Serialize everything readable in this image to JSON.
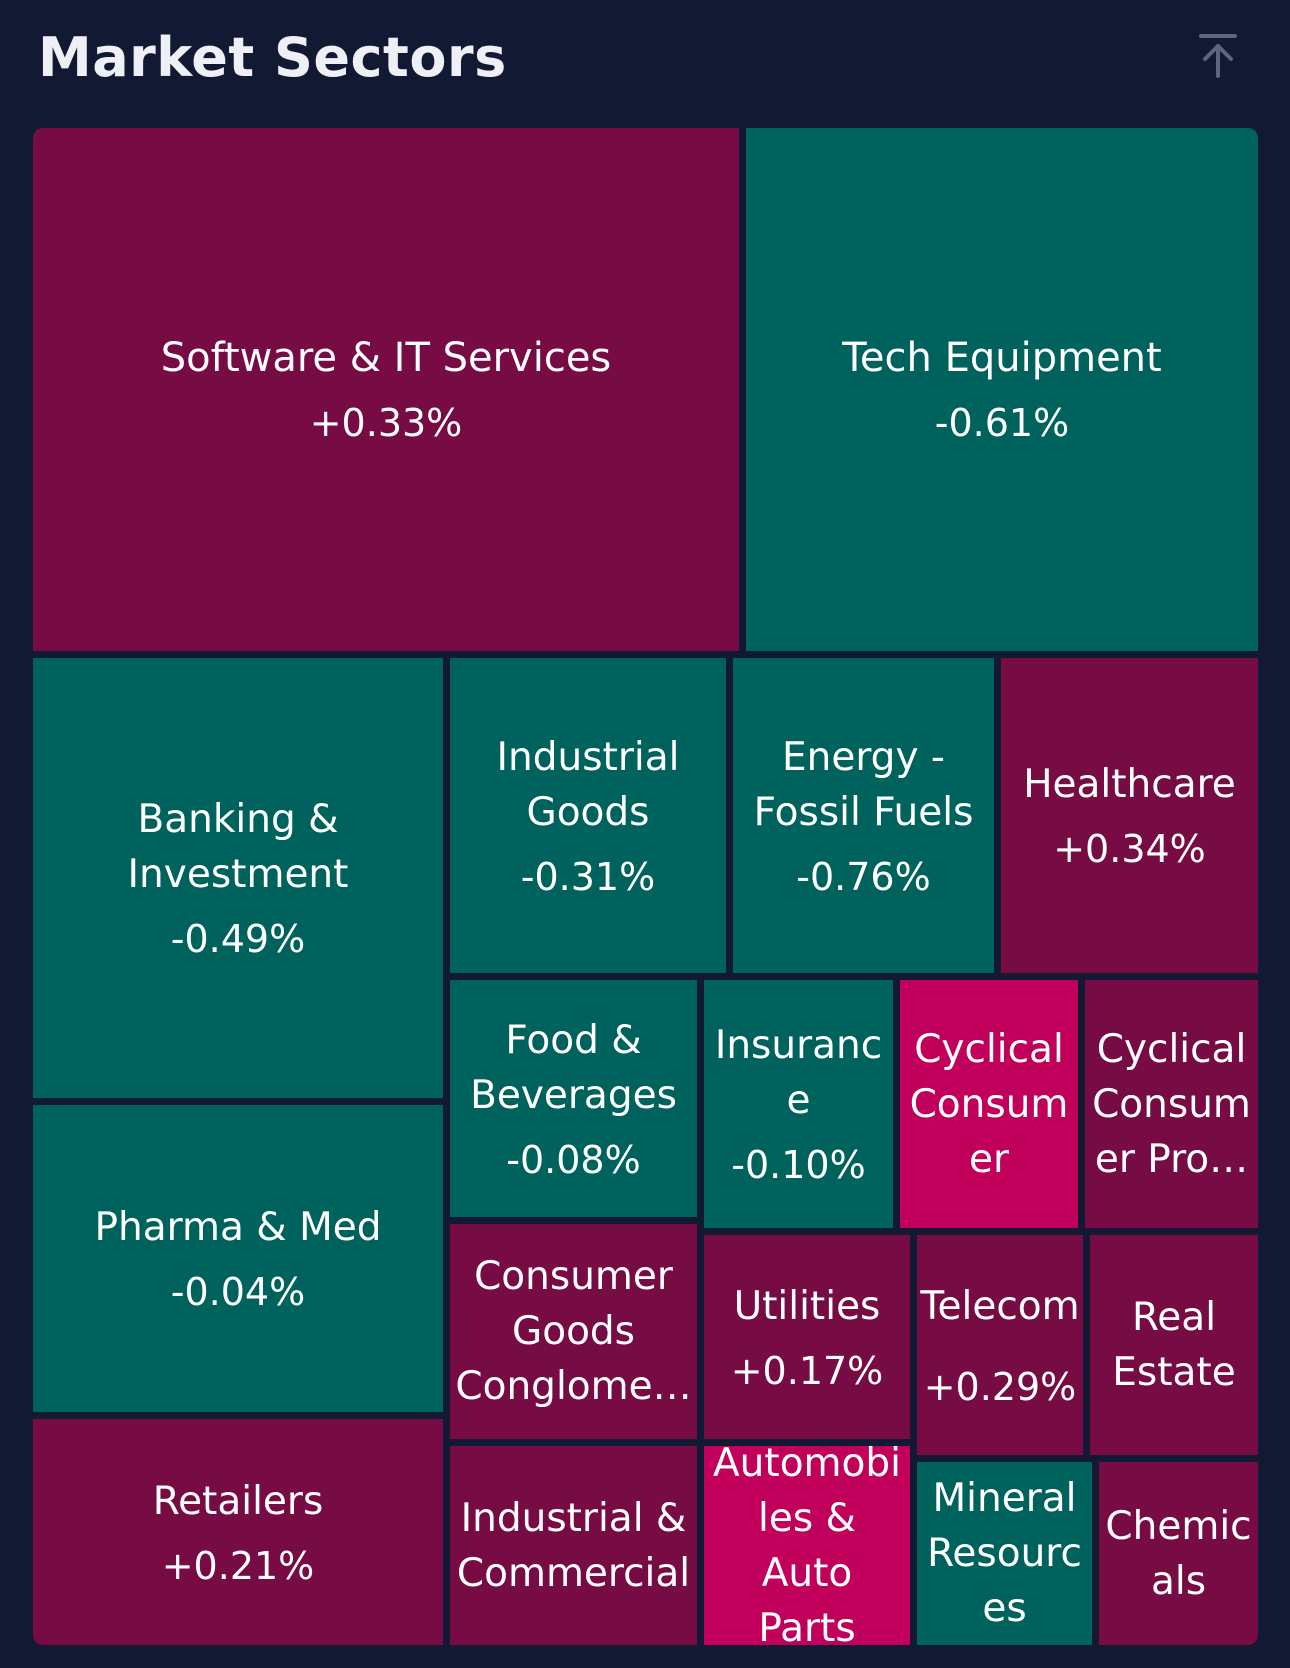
{
  "header": {
    "title": "Market Sectors",
    "collapse_icon": "arrow-up-to-line-icon"
  },
  "colors": {
    "background": "#121a33",
    "negative": "#00625c",
    "positive": "#770b44",
    "positive_strong": "#c0005a"
  },
  "sectors": [
    {
      "name": "Software & IT Services",
      "change": "+0.33%"
    },
    {
      "name": "Tech Equipment",
      "change": "-0.61%"
    },
    {
      "name": "Banking & Investment",
      "change": "-0.49%"
    },
    {
      "name": "Industrial Goods",
      "change": "-0.31%"
    },
    {
      "name": "Energy - Fossil Fuels",
      "change": "-0.76%"
    },
    {
      "name": "Healthcare",
      "change": "+0.34%"
    },
    {
      "name": "Food & Beverages",
      "change": "-0.08%"
    },
    {
      "name": "Insurance",
      "change": "-0.10%"
    },
    {
      "name": "Cyclical Consumer",
      "change": ""
    },
    {
      "name": "Cyclical Consumer Pro…",
      "change": ""
    },
    {
      "name": "Pharma & Med",
      "change": "-0.04%"
    },
    {
      "name": "Consumer Goods Conglome…",
      "change": ""
    },
    {
      "name": "Utilities",
      "change": "+0.17%"
    },
    {
      "name": "Telecom",
      "change": "+0.29%"
    },
    {
      "name": "Real Estate",
      "change": ""
    },
    {
      "name": "Retailers",
      "change": "+0.21%"
    },
    {
      "name": "Industrial & Commercial",
      "change": ""
    },
    {
      "name": "Automobiles & Auto Parts",
      "change": ""
    },
    {
      "name": "Mineral Resources",
      "change": ""
    },
    {
      "name": "Chemicals",
      "change": ""
    }
  ]
}
